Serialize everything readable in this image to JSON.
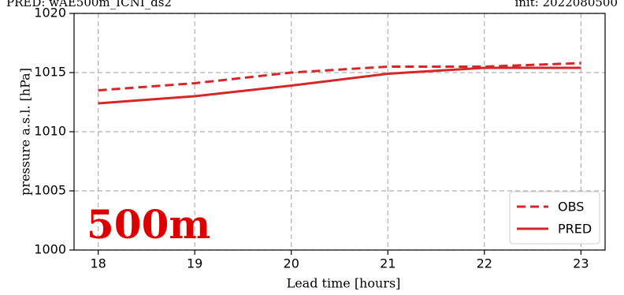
{
  "header": {
    "left": "PRED: wAE500m_ICNI_ds2",
    "right": "init: 2022080500"
  },
  "overlay_label": "500m",
  "colors": {
    "series": "#d62728",
    "grid": "#b0b0b0",
    "overlay_label": "#dd0000"
  },
  "chart_data": {
    "type": "line",
    "xlabel": "Lead time [hours]",
    "ylabel": "pressure a.s.l. [hPa]",
    "xlim": [
      17.75,
      23.25
    ],
    "ylim": [
      1000,
      1020
    ],
    "xticks": [
      18,
      19,
      20,
      21,
      22,
      23
    ],
    "yticks": [
      1000,
      1005,
      1010,
      1015,
      1020
    ],
    "grid": true,
    "legend_position": "lower right",
    "series": [
      {
        "name": "OBS",
        "style": "dashed",
        "x": [
          18,
          19,
          20,
          21,
          22,
          23
        ],
        "y": [
          1013.5,
          1014.1,
          1015.0,
          1015.5,
          1015.5,
          1015.8
        ]
      },
      {
        "name": "PRED",
        "style": "solid",
        "x": [
          18,
          19,
          20,
          21,
          22,
          23
        ],
        "y": [
          1012.4,
          1013.0,
          1013.9,
          1014.9,
          1015.4,
          1015.4
        ]
      }
    ]
  }
}
